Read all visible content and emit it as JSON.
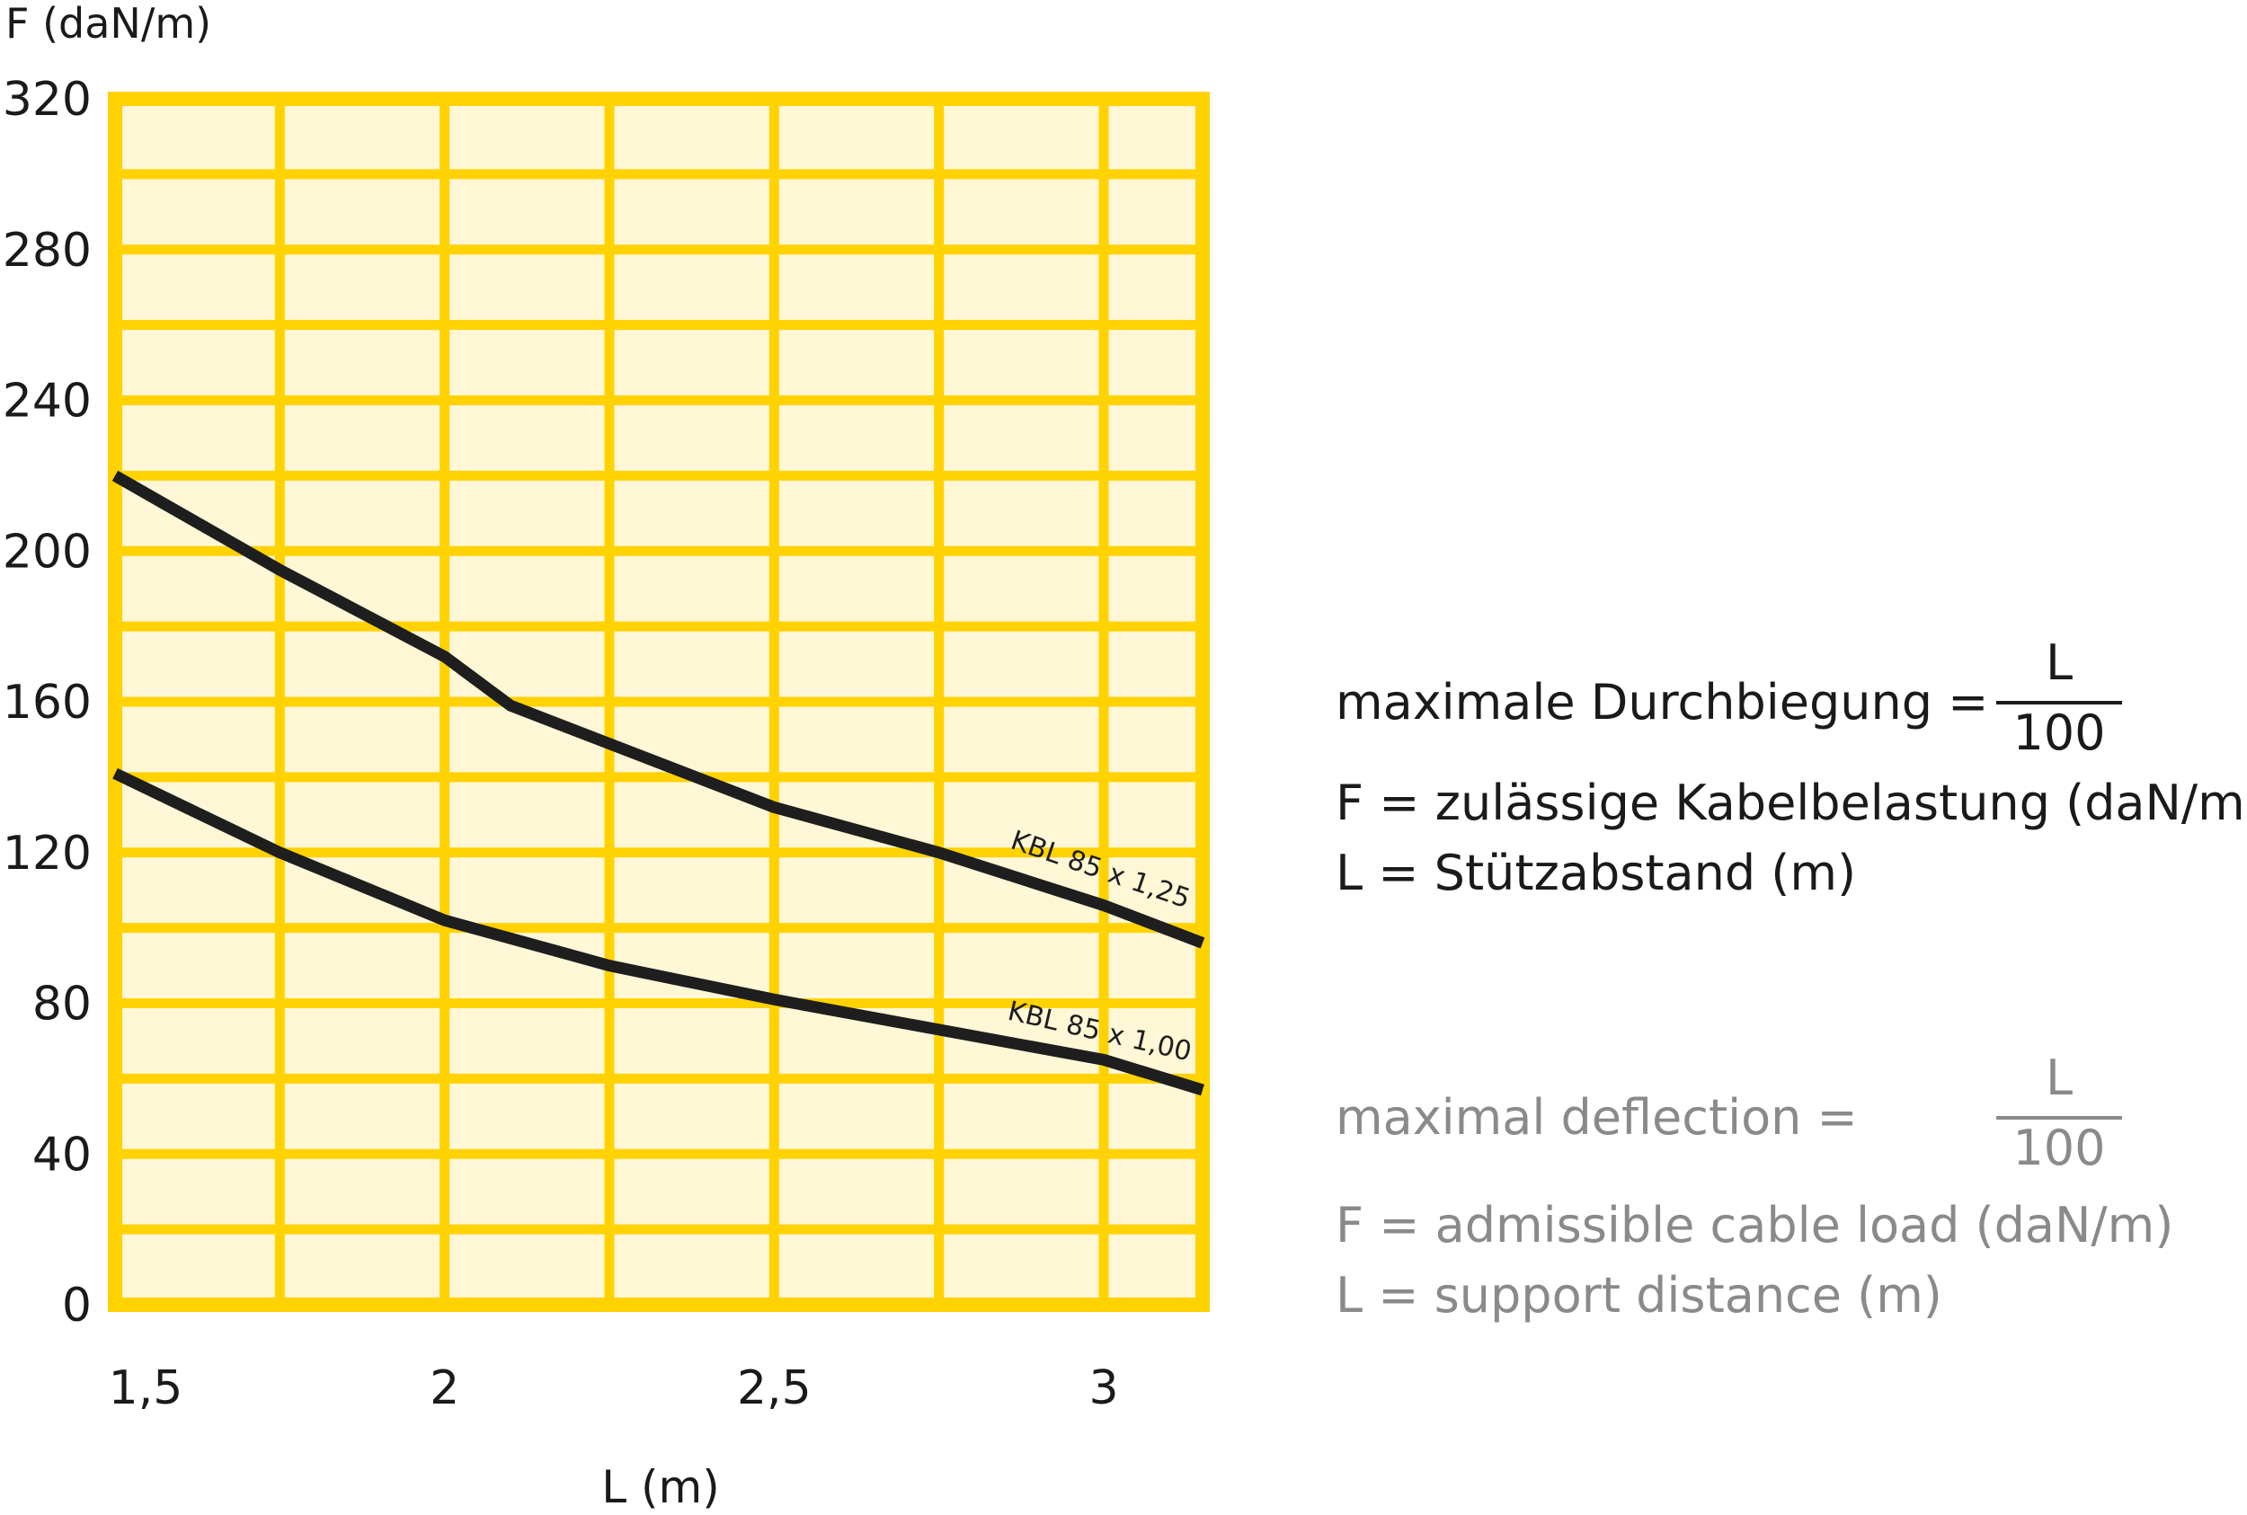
{
  "chart_data": {
    "type": "line",
    "ylabel": "F (daN/m)",
    "xlabel": "L (m)",
    "x_ticks": [
      1.5,
      2,
      2.5,
      3
    ],
    "x_tick_labels": [
      "1,5",
      "2",
      "2,5",
      "3"
    ],
    "y_ticks": [
      0,
      40,
      80,
      120,
      160,
      200,
      240,
      280,
      320
    ],
    "y_tick_labels": [
      "0",
      "40",
      "80",
      "120",
      "160",
      "200",
      "240",
      "280",
      "320"
    ],
    "xlim": [
      1.5,
      3.15
    ],
    "ylim": [
      0,
      320
    ],
    "grid": true,
    "series": [
      {
        "name": "KBL 85 x 1,25",
        "x": [
          1.5,
          1.75,
          2.0,
          2.1,
          2.5,
          2.75,
          3.0,
          3.15
        ],
        "y": [
          220,
          195,
          172,
          159,
          132,
          120,
          106,
          96
        ]
      },
      {
        "name": "KBL 85 x 1,00",
        "x": [
          1.5,
          1.75,
          2.0,
          2.25,
          2.5,
          2.75,
          3.0,
          3.15
        ],
        "y": [
          141,
          120,
          102,
          90,
          81,
          73,
          65,
          57
        ]
      }
    ]
  },
  "colors": {
    "grid_line": "#ffd200",
    "plot_fill": "#fff7d6",
    "series_line": "#1e1e1e",
    "german_text": "#1a1a1a",
    "english_text": "#8a8a8a"
  },
  "legend": {
    "german": {
      "deflection": "maximale Durchbiegung =",
      "numerator": "L",
      "denominator": "100",
      "force": "F = zulässige Kabelbelastung (daN/m)",
      "length": "L = Stützabstand (m)"
    },
    "english": {
      "deflection": "maximal deflection =",
      "numerator": "L",
      "denominator": "100",
      "force": "F = admissible cable load (daN/m)",
      "length": "L = support distance (m)"
    }
  }
}
